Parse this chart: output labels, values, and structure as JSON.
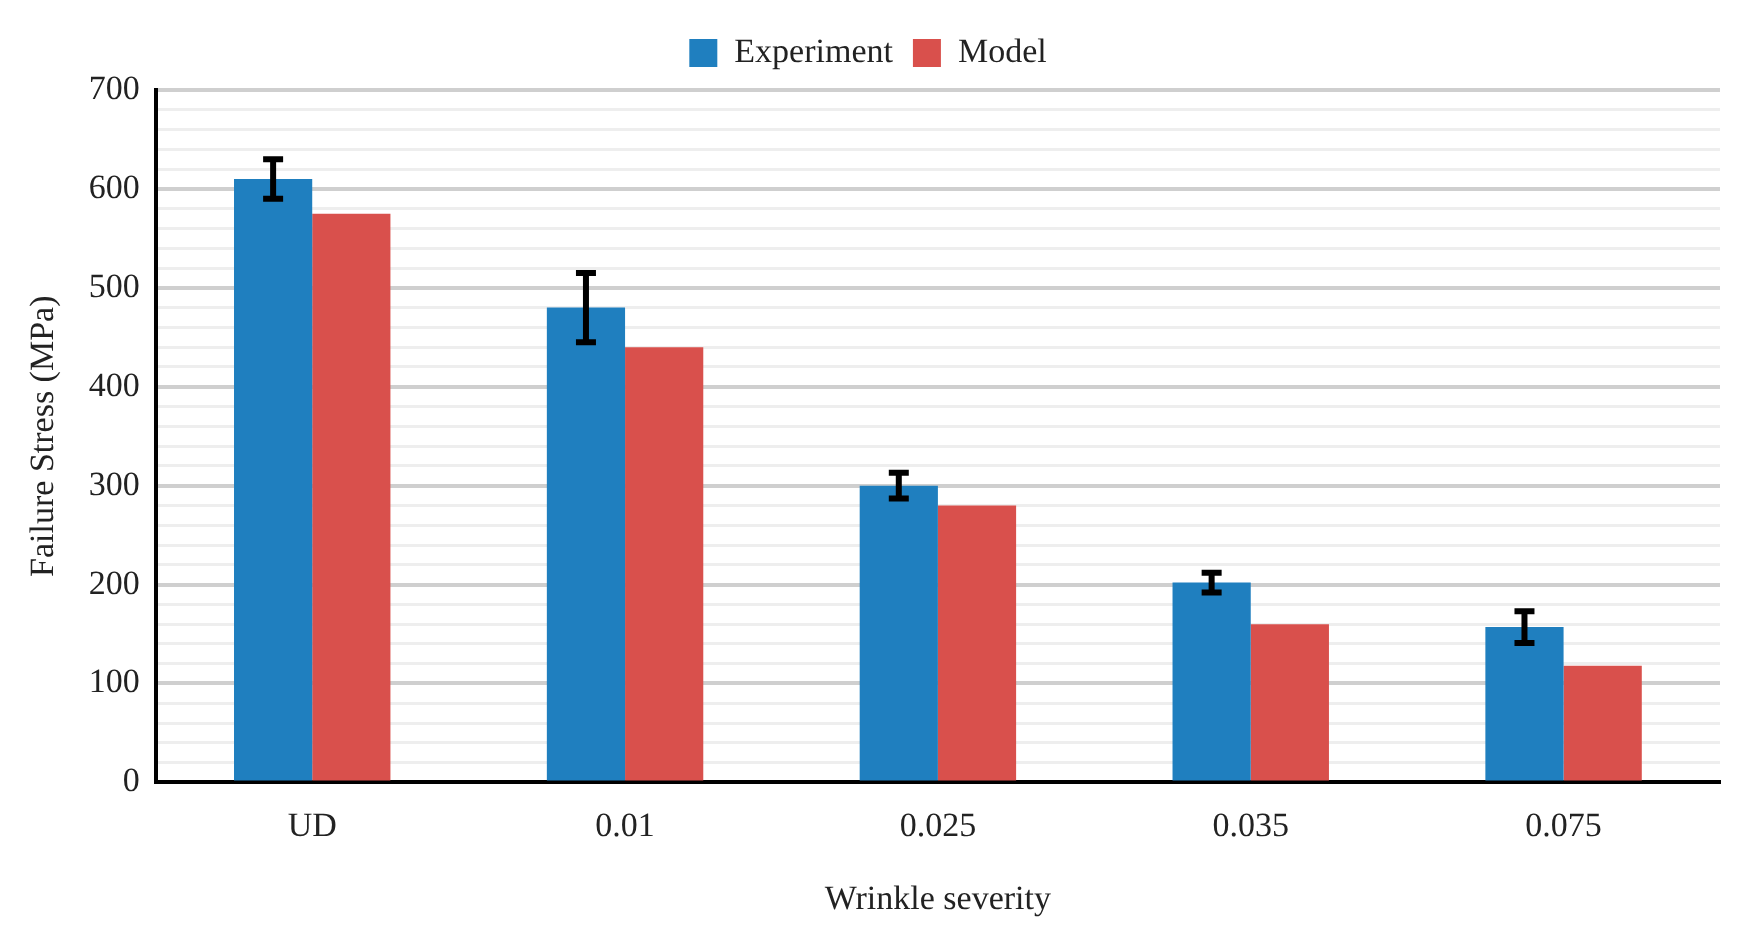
{
  "chart_data": {
    "type": "bar",
    "xlabel": "Wrinkle severity",
    "ylabel": "Failure Stress (MPa)",
    "categories": [
      "UD",
      "0.01",
      "0.025",
      "0.035",
      "0.075"
    ],
    "series": [
      {
        "name": "Experiment",
        "color": "#1f7fbf",
        "values": [
          610,
          480,
          300,
          202,
          157
        ],
        "errors": [
          20,
          35,
          13,
          10,
          16
        ]
      },
      {
        "name": "Model",
        "color": "#d9504c",
        "values": [
          575,
          440,
          280,
          160,
          118
        ]
      }
    ],
    "ylim": [
      0,
      700
    ],
    "yticks": [
      0,
      {
        "value": 20,
        "label": null
      },
      {
        "value": 40,
        "label": null
      },
      {
        "value": 60,
        "label": null
      },
      {
        "value": 80,
        "label": null
      },
      100,
      {
        "value": 120,
        "label": null
      },
      {
        "value": 140,
        "label": null
      },
      {
        "value": 160,
        "label": null
      },
      {
        "value": 180,
        "label": null
      },
      200,
      {
        "value": 220,
        "label": null
      },
      {
        "value": 240,
        "label": null
      },
      {
        "value": 260,
        "label": null
      },
      {
        "value": 280,
        "label": null
      },
      300,
      {
        "value": 320,
        "label": null
      },
      {
        "value": 340,
        "label": null
      },
      {
        "value": 360,
        "label": null
      },
      {
        "value": 380,
        "label": null
      },
      400,
      {
        "value": 420,
        "label": null
      },
      {
        "value": 440,
        "label": null
      },
      {
        "value": 460,
        "label": null
      },
      {
        "value": 480,
        "label": null
      },
      500,
      {
        "value": 520,
        "label": null
      },
      {
        "value": 540,
        "label": null
      },
      {
        "value": 560,
        "label": null
      },
      {
        "value": 580,
        "label": null
      },
      600,
      {
        "value": 620,
        "label": null
      },
      {
        "value": 640,
        "label": null
      },
      {
        "value": 660,
        "label": null
      },
      {
        "value": 680,
        "label": null
      },
      700
    ],
    "grid": "y",
    "legend": "top"
  }
}
